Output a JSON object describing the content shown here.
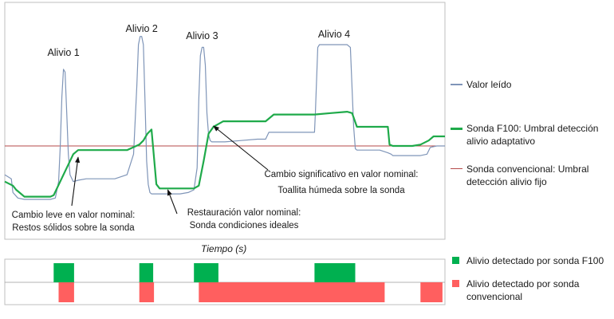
{
  "chart_data": [
    {
      "type": "line",
      "xlabel": "Tiempo (s)",
      "ylabel": "",
      "grid": false,
      "legend_position": "right",
      "threshold_fixed": 0.26,
      "series": [
        {
          "name": "Valor leído",
          "color": "#7f95b8",
          "x": [
            0,
            8,
            10,
            16,
            24,
            32,
            40,
            48,
            56,
            62,
            66,
            68,
            70,
            72,
            74,
            76,
            78,
            80,
            84,
            90,
            100,
            120,
            135,
            150,
            158,
            162,
            164,
            166,
            168,
            170,
            172,
            174,
            176,
            178,
            180,
            182,
            190,
            200,
            215,
            225,
            232,
            236,
            238,
            240,
            242,
            244,
            246,
            248,
            250,
            252,
            254,
            256,
            260,
            270,
            290,
            310,
            320,
            324,
            330,
            360,
            380,
            381,
            384,
            386,
            410,
            420,
            424,
            428,
            430,
            432,
            460,
            470,
            474,
            476,
            480,
            500,
            510,
            518,
            522,
            530,
            540
          ],
          "y": [
            0.05,
            0.02,
            -0.08,
            -0.12,
            -0.13,
            -0.13,
            -0.13,
            -0.13,
            -0.13,
            -0.12,
            0.0,
            0.25,
            0.62,
            0.82,
            0.8,
            0.5,
            0.2,
            0.05,
            0.0,
            0.01,
            0.02,
            0.02,
            0.02,
            0.05,
            0.2,
            0.7,
            1.0,
            1.06,
            1.06,
            1.0,
            0.6,
            0.15,
            -0.02,
            -0.08,
            -0.09,
            -0.09,
            -0.09,
            -0.09,
            -0.09,
            -0.08,
            -0.06,
            0.1,
            0.6,
            0.92,
            0.98,
            0.98,
            0.85,
            0.5,
            0.34,
            0.3,
            0.29,
            0.29,
            0.29,
            0.29,
            0.3,
            0.31,
            0.31,
            0.36,
            0.36,
            0.36,
            0.36,
            0.5,
            0.98,
            1.0,
            1.0,
            1.0,
            0.98,
            0.4,
            0.24,
            0.23,
            0.23,
            0.21,
            0.2,
            0.19,
            0.19,
            0.19,
            0.19,
            0.2,
            0.25,
            0.26,
            0.26
          ]
        },
        {
          "name": "Sonda F100: Umbral detección alivio adaptativo",
          "color": "#1faa4a",
          "x": [
            0,
            10,
            14,
            18,
            24,
            40,
            56,
            60,
            84,
            90,
            100,
            130,
            150,
            165,
            170,
            175,
            180,
            182,
            186,
            190,
            200,
            215,
            225,
            232,
            238,
            244,
            250,
            256,
            262,
            268,
            290,
            320,
            330,
            360,
            380,
            400,
            420,
            426,
            432,
            460,
            470,
            472,
            476,
            480,
            500,
            510,
            520,
            526,
            530,
            540
          ],
          "y": [
            0.0,
            -0.03,
            -0.06,
            -0.08,
            -0.11,
            -0.11,
            -0.11,
            -0.1,
            0.2,
            0.23,
            0.23,
            0.23,
            0.23,
            0.27,
            0.3,
            0.35,
            0.38,
            0.25,
            -0.02,
            -0.05,
            -0.05,
            -0.05,
            -0.05,
            -0.05,
            -0.03,
            0.15,
            0.35,
            0.4,
            0.42,
            0.44,
            0.44,
            0.44,
            0.49,
            0.49,
            0.49,
            0.5,
            0.51,
            0.5,
            0.4,
            0.4,
            0.4,
            0.27,
            0.26,
            0.26,
            0.26,
            0.27,
            0.3,
            0.33,
            0.33,
            0.33
          ]
        },
        {
          "name": "Sonda convencional: Umbral detección alivio fijo",
          "color": "#b54a4a",
          "x": [
            0,
            540
          ],
          "y": [
            0.26,
            0.26
          ]
        }
      ],
      "peaks": [
        {
          "label": "Alivio 1",
          "x": 72
        },
        {
          "label": "Alivio 2",
          "x": 168
        },
        {
          "label": "Alivio 3",
          "x": 242
        },
        {
          "label": "Alivio 4",
          "x": 404
        }
      ],
      "annotations": [
        {
          "lines": [
            "Cambio leve en valor nominal:",
            "Restos sólidos sobre la sonda"
          ],
          "target_x": 90
        },
        {
          "lines": [
            "Restauración valor nominal:",
            "Sonda condiciones ideales"
          ],
          "target_x": 200
        },
        {
          "lines": [
            "Cambio significativo en valor nominal:",
            "Toallita húmeda sobre la sonda"
          ],
          "target_x": 256
        }
      ]
    },
    {
      "type": "bar",
      "xlabel": "",
      "series": [
        {
          "name": "Alivio detectado por sonda F100",
          "color": "#00b050",
          "intervals": [
            [
              60,
              85
            ],
            [
              165,
              182
            ],
            [
              232,
              262
            ],
            [
              380,
              430
            ]
          ]
        },
        {
          "name": "Alivio detectado por sonda convencional",
          "color": "#ff5f5f",
          "intervals": [
            [
              66,
              85
            ],
            [
              165,
              183
            ],
            [
              238,
              466
            ],
            [
              510,
              537
            ]
          ]
        }
      ]
    }
  ]
}
